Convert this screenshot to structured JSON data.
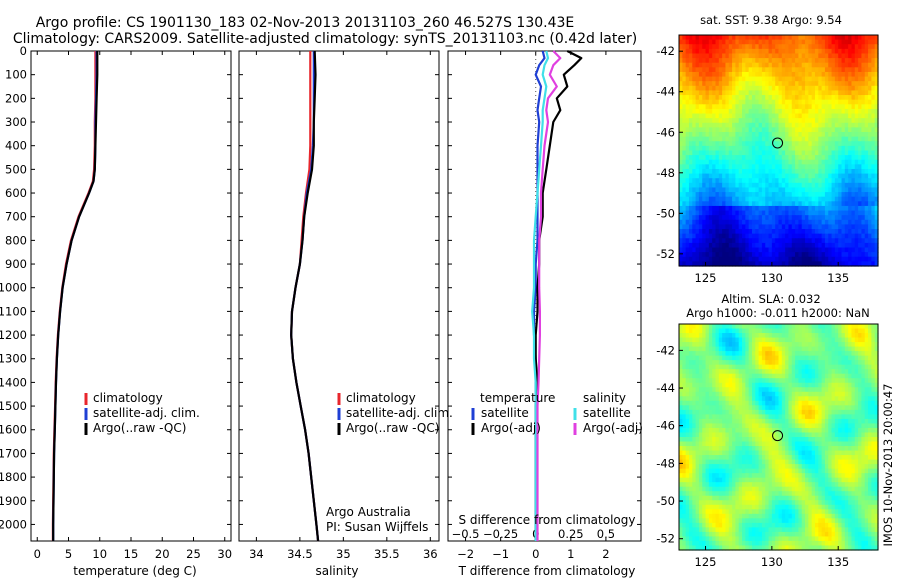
{
  "window": {
    "title_line1": "Argo profile: CS 1901130_183 02-Nov-2013 20131103_260 46.527S 130.43E",
    "title_line2": "Climatology: CARS2009. Satellite-adjusted climatology: synTS_20131103.nc (0.42d later)"
  },
  "colors": {
    "climatology": "#e8262c",
    "satellite": "#1f3fd4",
    "argo": "#000000",
    "sal_satellite": "#40e0e8",
    "sal_argo": "#e040e0"
  },
  "chart_data": [
    {
      "type": "line",
      "name": "temperature",
      "xlabel": "temperature (deg C)",
      "xlim": [
        -1,
        31
      ],
      "xticks": [
        0,
        5,
        10,
        15,
        20,
        25,
        30
      ],
      "ylim": [
        2070,
        0
      ],
      "yticks": [
        0,
        100,
        200,
        300,
        400,
        500,
        600,
        700,
        800,
        900,
        1000,
        1100,
        1200,
        1300,
        1400,
        1500,
        1600,
        1700,
        1800,
        1900,
        2000
      ],
      "depth": [
        0,
        100,
        200,
        300,
        400,
        500,
        550,
        600,
        700,
        800,
        900,
        1000,
        1100,
        1200,
        1300,
        1400,
        1500,
        1600,
        1700,
        1800,
        1900,
        2000,
        2070
      ],
      "series": [
        {
          "name": "climatology",
          "color_key": "climatology",
          "values": [
            9.3,
            9.3,
            9.3,
            9.2,
            9.2,
            9.1,
            8.9,
            8.2,
            6.6,
            5.4,
            4.6,
            4.0,
            3.6,
            3.3,
            3.1,
            2.95,
            2.85,
            2.75,
            2.65,
            2.6,
            2.55,
            2.5,
            2.5
          ]
        },
        {
          "name": "satellite-adj. clim.",
          "color_key": "satellite",
          "values": [
            9.5,
            9.5,
            9.4,
            9.3,
            9.3,
            9.2,
            9.0,
            8.3,
            6.7,
            5.5,
            4.7,
            4.05,
            3.65,
            3.35,
            3.15,
            3.0,
            2.9,
            2.8,
            2.7,
            2.65,
            2.6,
            2.55,
            2.55
          ]
        },
        {
          "name": "Argo(..raw -QC)",
          "color_key": "argo",
          "values": [
            9.6,
            9.6,
            9.5,
            9.4,
            9.3,
            9.2,
            9.0,
            8.3,
            6.7,
            5.5,
            4.7,
            4.05,
            3.65,
            3.35,
            3.15,
            3.0,
            2.9,
            2.8,
            2.7,
            2.65,
            2.6,
            2.55,
            2.55
          ]
        }
      ],
      "legend": [
        "climatology",
        "satellite-adj. clim.",
        "Argo(..raw -QC)"
      ]
    },
    {
      "type": "line",
      "name": "salinity",
      "xlabel": "salinity",
      "xlim": [
        33.8,
        36.1
      ],
      "xticks": [
        34,
        34.5,
        35,
        35.5,
        36
      ],
      "ylim": [
        2070,
        0
      ],
      "depth": [
        0,
        100,
        200,
        300,
        400,
        500,
        600,
        700,
        800,
        900,
        1000,
        1100,
        1200,
        1300,
        1400,
        1500,
        1600,
        1700,
        1800,
        1900,
        2000,
        2070
      ],
      "series": [
        {
          "name": "climatology",
          "color_key": "climatology",
          "values": [
            34.62,
            34.62,
            34.62,
            34.62,
            34.62,
            34.61,
            34.57,
            34.54,
            34.52,
            34.5,
            34.45,
            34.41,
            34.4,
            34.42,
            34.46,
            34.51,
            34.56,
            34.6,
            34.63,
            34.66,
            34.69,
            34.71
          ]
        },
        {
          "name": "satellite-adj. clim.",
          "color_key": "satellite",
          "values": [
            34.66,
            34.66,
            34.66,
            34.66,
            34.65,
            34.63,
            34.58,
            34.55,
            34.53,
            34.5,
            34.45,
            34.41,
            34.4,
            34.42,
            34.46,
            34.51,
            34.56,
            34.6,
            34.63,
            34.66,
            34.69,
            34.71
          ]
        },
        {
          "name": "Argo(..raw -QC)",
          "color_key": "argo",
          "values": [
            34.67,
            34.68,
            34.67,
            34.66,
            34.66,
            34.64,
            34.59,
            34.55,
            34.53,
            34.5,
            34.45,
            34.41,
            34.4,
            34.42,
            34.46,
            34.51,
            34.56,
            34.6,
            34.63,
            34.66,
            34.69,
            34.71
          ]
        }
      ],
      "legend": [
        "climatology",
        "satellite-adj. clim.",
        "Argo(..raw -QC)"
      ],
      "annotation": [
        "Argo Australia",
        "PI: Susan Wijffels"
      ]
    },
    {
      "type": "line",
      "name": "difference",
      "xlabel": "T difference from climatology",
      "top_xlabel": "S difference from climatology",
      "xlim": [
        -2.5,
        3
      ],
      "xticks": [
        -2,
        -1,
        0,
        1,
        2
      ],
      "xtick_labels": [
        "−2",
        "−1",
        "0",
        "1",
        "2"
      ],
      "top_xticks": [
        -0.5,
        -0.25,
        0,
        0.25,
        0.5
      ],
      "top_xtick_labels": [
        "−0.5",
        "−0.25",
        "0",
        "0.25",
        "0.5"
      ],
      "ylim": [
        2070,
        0
      ],
      "depth": [
        0,
        30,
        60,
        100,
        150,
        200,
        250,
        300,
        400,
        500,
        600,
        700,
        800,
        900,
        1000,
        1100,
        1200,
        1300,
        1400,
        1500,
        1600,
        1700,
        1800,
        1900,
        2000,
        2070
      ],
      "series": [
        {
          "name": "temperature satellite",
          "color_key": "satellite",
          "values": [
            0.2,
            0.25,
            0.1,
            0.0,
            0.15,
            0.1,
            0.05,
            0.1,
            0.05,
            0.05,
            0.05,
            0.05,
            0.05,
            0.0,
            0.0,
            -0.05,
            -0.05,
            0.0,
            0.0,
            0.0,
            0.0,
            0.0,
            0.0,
            0.0,
            0.0,
            0.0
          ]
        },
        {
          "name": "temperature Argo(-adj)",
          "color_key": "argo",
          "values": [
            0.9,
            1.3,
            1.1,
            0.8,
            0.9,
            0.6,
            0.7,
            0.5,
            0.4,
            0.3,
            0.2,
            0.2,
            0.1,
            0.1,
            0.05,
            0.05,
            0.0,
            0.0,
            0.05,
            0.0,
            0.0,
            0.0,
            0.0,
            0.0,
            0.0,
            0.0
          ]
        },
        {
          "name": "salinity satellite",
          "color_key": "sal_satellite",
          "values": [
            0.3,
            0.35,
            0.25,
            0.2,
            0.3,
            0.25,
            0.2,
            0.2,
            0.15,
            0.1,
            0.05,
            0.0,
            -0.05,
            -0.05,
            -0.05,
            -0.1,
            -0.05,
            -0.05,
            0.0,
            0.0,
            0.0,
            0.0,
            0.0,
            0.0,
            0.0,
            0.0
          ]
        },
        {
          "name": "salinity Argo(-adj)",
          "color_key": "sal_argo",
          "values": [
            0.5,
            0.7,
            0.5,
            0.4,
            0.6,
            0.35,
            0.3,
            0.35,
            0.25,
            0.2,
            0.15,
            0.15,
            0.1,
            0.1,
            0.1,
            0.12,
            0.12,
            0.1,
            0.08,
            0.05,
            0.05,
            0.05,
            0.05,
            0.05,
            0.05,
            0.05
          ]
        }
      ],
      "legend_titles": [
        "temperature",
        "salinity"
      ],
      "legend": [
        "satellite",
        "Argo(-adj)",
        "satellite",
        "Argo(-adj)"
      ]
    },
    {
      "type": "heatmap",
      "name": "sst_map",
      "title": "sat. SST: 9.38  Argo: 9.54",
      "xlim": [
        123,
        138
      ],
      "ylim": [
        -52.6,
        -41.2
      ],
      "xticks": [
        125,
        130,
        135
      ],
      "yticks": [
        -42,
        -44,
        -46,
        -48,
        -50,
        -52
      ],
      "marker": {
        "lon": 130.43,
        "lat": -46.527
      }
    },
    {
      "type": "heatmap",
      "name": "sla_map",
      "title_line1": "Altim. SLA: 0.032",
      "title_line2": "Argo h1000: -0.011  h2000: NaN",
      "xlim": [
        123,
        138
      ],
      "ylim": [
        -52.6,
        -40.6
      ],
      "xticks": [
        125,
        130,
        135
      ],
      "yticks": [
        -42,
        -44,
        -46,
        -48,
        -50,
        -52
      ],
      "marker": {
        "lon": 130.43,
        "lat": -46.527
      },
      "side_label": "IMOS 10-Nov-2013 20:00:47"
    }
  ]
}
